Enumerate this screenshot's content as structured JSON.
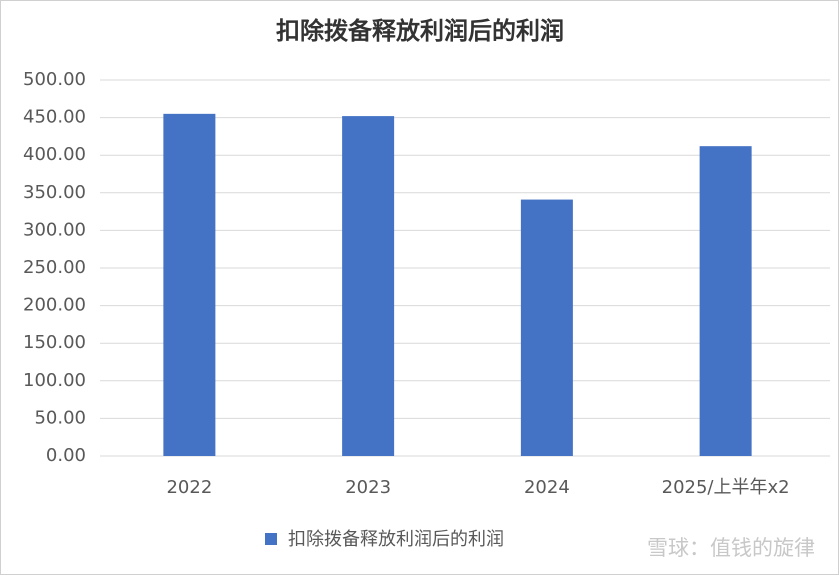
{
  "chart_data": {
    "type": "bar",
    "title": "扣除拨备释放利润后的利润",
    "categories": [
      "2022",
      "2023",
      "2024",
      "2025/上半年x2"
    ],
    "series": [
      {
        "name": "扣除拨备释放利润后的利润",
        "color": "#4472c4",
        "values": [
          455,
          452,
          341,
          412
        ]
      }
    ],
    "ylim": [
      0,
      500
    ],
    "yticks": [
      {
        "value": 0,
        "label": "0.00"
      },
      {
        "value": 50,
        "label": "50.00"
      },
      {
        "value": 100,
        "label": "100.00"
      },
      {
        "value": 150,
        "label": "150.00"
      },
      {
        "value": 200,
        "label": "200.00"
      },
      {
        "value": 250,
        "label": "250.00"
      },
      {
        "value": 300,
        "label": "300.00"
      },
      {
        "value": 350,
        "label": "350.00"
      },
      {
        "value": 400,
        "label": "400.00"
      },
      {
        "value": 450,
        "label": "450.00"
      },
      {
        "value": 500,
        "label": "500.00"
      }
    ],
    "grid": true,
    "legend": "bottom",
    "annotations": [
      "雪球：值钱的旋律"
    ]
  }
}
